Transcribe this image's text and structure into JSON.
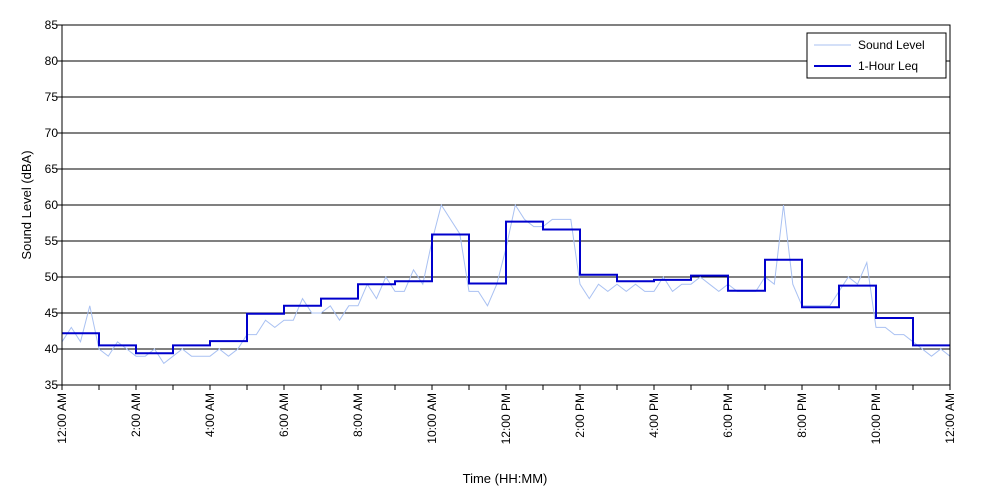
{
  "chart_data": {
    "type": "line",
    "title": "",
    "xlabel": "Time (HH:MM)",
    "ylabel": "Sound Level (dBA)",
    "ylim": [
      35,
      85
    ],
    "xlim_hours": [
      0,
      24
    ],
    "y_ticks": [
      35,
      40,
      45,
      50,
      55,
      60,
      65,
      70,
      75,
      80,
      85
    ],
    "x_ticks": [
      {
        "hour": 0,
        "label": "12:00 AM"
      },
      {
        "hour": 2,
        "label": "2:00 AM"
      },
      {
        "hour": 4,
        "label": "4:00 AM"
      },
      {
        "hour": 6,
        "label": "6:00 AM"
      },
      {
        "hour": 8,
        "label": "8:00 AM"
      },
      {
        "hour": 10,
        "label": "10:00 AM"
      },
      {
        "hour": 12,
        "label": "12:00 PM"
      },
      {
        "hour": 14,
        "label": "2:00 PM"
      },
      {
        "hour": 16,
        "label": "4:00 PM"
      },
      {
        "hour": 18,
        "label": "6:00 PM"
      },
      {
        "hour": 20,
        "label": "8:00 PM"
      },
      {
        "hour": 22,
        "label": "10:00 PM"
      },
      {
        "hour": 24,
        "label": "12:00 AM"
      }
    ],
    "grid": "horizontal",
    "legend_position": "top-right",
    "series": [
      {
        "name": "Sound Level",
        "color": "#a9c1f2",
        "style": "thin-line",
        "x_hours": [
          0,
          0.25,
          0.5,
          0.75,
          1,
          1.25,
          1.5,
          1.75,
          2,
          2.25,
          2.5,
          2.75,
          3,
          3.25,
          3.5,
          3.75,
          4,
          4.25,
          4.5,
          4.75,
          5,
          5.25,
          5.5,
          5.75,
          6,
          6.25,
          6.5,
          6.75,
          7,
          7.25,
          7.5,
          7.75,
          8,
          8.25,
          8.5,
          8.75,
          9,
          9.25,
          9.5,
          9.75,
          10,
          10.25,
          10.5,
          10.75,
          11,
          11.25,
          11.5,
          11.75,
          12,
          12.25,
          12.5,
          12.75,
          13,
          13.25,
          13.5,
          13.75,
          14,
          14.25,
          14.5,
          14.75,
          15,
          15.25,
          15.5,
          15.75,
          16,
          16.25,
          16.5,
          16.75,
          17,
          17.25,
          17.5,
          17.75,
          18,
          18.25,
          18.5,
          18.75,
          19,
          19.25,
          19.5,
          19.75,
          20,
          20.25,
          20.5,
          20.75,
          21,
          21.25,
          21.5,
          21.75,
          22,
          22.25,
          22.5,
          22.75,
          23,
          23.25,
          23.5,
          23.75,
          24
        ],
        "values": [
          41,
          43,
          41,
          46,
          40,
          39,
          41,
          40,
          39,
          39,
          40,
          38,
          39,
          40,
          39,
          39,
          39,
          40,
          39,
          40,
          42,
          42,
          44,
          43,
          44,
          44,
          47,
          45,
          45,
          46,
          44,
          46,
          46,
          49,
          47,
          50,
          48,
          48,
          51,
          49,
          55,
          60,
          58,
          56,
          48,
          48,
          46,
          49,
          54,
          60,
          58,
          57,
          57,
          58,
          58,
          58,
          49,
          47,
          49,
          48,
          49,
          48,
          49,
          48,
          48,
          50,
          48,
          49,
          49,
          50,
          49,
          48,
          49,
          48,
          48,
          48,
          50,
          49,
          60,
          49,
          46,
          46,
          46,
          46,
          48,
          50,
          49,
          52,
          43,
          43,
          42,
          42,
          41,
          40,
          39,
          40,
          39
        ]
      },
      {
        "name": "1-Hour Leq",
        "color": "#0000cc",
        "style": "step",
        "x_hours": [
          0,
          1,
          2,
          3,
          4,
          5,
          6,
          7,
          8,
          9,
          10,
          11,
          12,
          13,
          14,
          15,
          16,
          17,
          18,
          19,
          20,
          21,
          22,
          23
        ],
        "values": [
          42.2,
          40.5,
          39.4,
          40.5,
          41.1,
          44.9,
          46.0,
          47.0,
          49.0,
          49.4,
          55.9,
          49.1,
          57.7,
          56.6,
          50.3,
          49.4,
          49.6,
          50.2,
          48.1,
          52.4,
          45.8,
          48.8,
          44.3,
          40.5
        ]
      }
    ]
  }
}
